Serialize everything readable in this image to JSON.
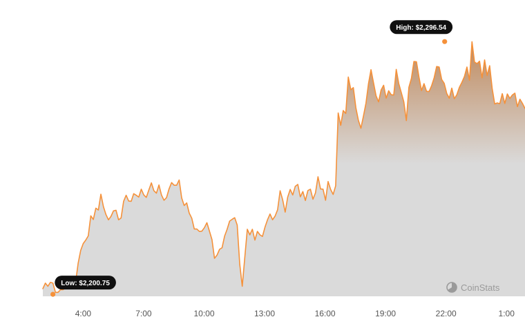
{
  "chart_data": {
    "type": "area",
    "x_range": [
      "02:00",
      "01:55"
    ],
    "x_ticks": [
      "4:00",
      "7:00",
      "10:00",
      "13:00",
      "16:00",
      "19:00",
      "22:00",
      "1:00"
    ],
    "ylim": [
      2200,
      2300
    ],
    "line_color": "#f5913a",
    "fill_color_top": "#c08a5e",
    "fill_color_bottom": "#dadada",
    "annotations": {
      "high": {
        "label": "High: $2,296.54",
        "x": "21:56",
        "value": 2296.54
      },
      "low": {
        "label": "Low: $2,200.75",
        "x": "02:30",
        "value": 2200.75
      }
    },
    "series": [
      {
        "values": [
          2202.9,
          2205.0,
          2203.8,
          2205.3,
          2205.0,
          2201.5,
          2201.5,
          2202.5,
          2202.5,
          2203.2,
          2204.0,
          2203.8,
          2204.3,
          2205.4,
          2212.6,
          2217.4,
          2220.0,
          2221.3,
          2222.9,
          2230.5,
          2229.1,
          2233.4,
          2232.7,
          2238.7,
          2234.0,
          2231.0,
          2229.0,
          2230.3,
          2232.4,
          2232.6,
          2229.0,
          2229.7,
          2236.0,
          2238.3,
          2236.1,
          2236.0,
          2238.9,
          2238.3,
          2237.6,
          2240.6,
          2238.4,
          2237.5,
          2240.3,
          2243.0,
          2240.0,
          2239.1,
          2242.2,
          2238.4,
          2236.4,
          2237.4,
          2240.7,
          2243.1,
          2242.1,
          2242.1,
          2244.1,
          2237.3,
          2234.4,
          2235.4,
          2231.5,
          2229.6,
          2225.5,
          2225.5,
          2224.6,
          2224.7,
          2226.0,
          2227.9,
          2224.7,
          2221.5,
          2214.4,
          2215.6,
          2217.8,
          2218.4,
          2222.8,
          2225.4,
          2228.5,
          2229.2,
          2229.8,
          2227.0,
          2212.2,
          2203.8,
          2214.7,
          2225.4,
          2223.3,
          2225.4,
          2221.3,
          2224.6,
          2223.3,
          2222.7,
          2226.2,
          2229.0,
          2231.2,
          2229.0,
          2230.4,
          2232.8,
          2240.0,
          2236.6,
          2231.9,
          2237.6,
          2240.5,
          2238.4,
          2241.7,
          2242.4,
          2237.7,
          2239.7,
          2236.3,
          2240.1,
          2240.6,
          2236.8,
          2239.2,
          2245.3,
          2240.7,
          2240.6,
          2236.4,
          2243.5,
          2240.5,
          2238.6,
          2241.9,
          2269.5,
          2264.8,
          2270.4,
          2269.3,
          2283.1,
          2278.3,
          2279.1,
          2271.5,
          2266.7,
          2263.7,
          2268.3,
          2273.2,
          2280.6,
          2285.9,
          2280.9,
          2276.0,
          2273.7,
          2278.2,
          2280.0,
          2275.1,
          2277.9,
          2276.4,
          2276.3,
          2286.0,
          2280.6,
          2277.2,
          2273.7,
          2266.6,
          2279.2,
          2282.6,
          2289.0,
          2288.9,
          2283.1,
          2278.0,
          2280.6,
          2277.7,
          2277.6,
          2279.8,
          2282.8,
          2287.1,
          2286.9,
          2282.2,
          2280.7,
          2276.9,
          2275.1,
          2278.9,
          2274.9,
          2276.4,
          2279.2,
          2281.1,
          2283.3,
          2286.9,
          2281.9,
          2296.5,
          2288.8,
          2288.2,
          2289.1,
          2282.8,
          2289.6,
          2283.7,
          2287.4,
          2278.8,
          2272.9,
          2273.3,
          2273.0,
          2276.8,
          2273.1,
          2276.7,
          2275.0,
          2276.3,
          2277.0,
          2271.9,
          2274.7,
          2273.1,
          2271.2
        ]
      }
    ]
  },
  "brand": {
    "name": "CoinStats",
    "icon": "pie-chart-icon"
  }
}
